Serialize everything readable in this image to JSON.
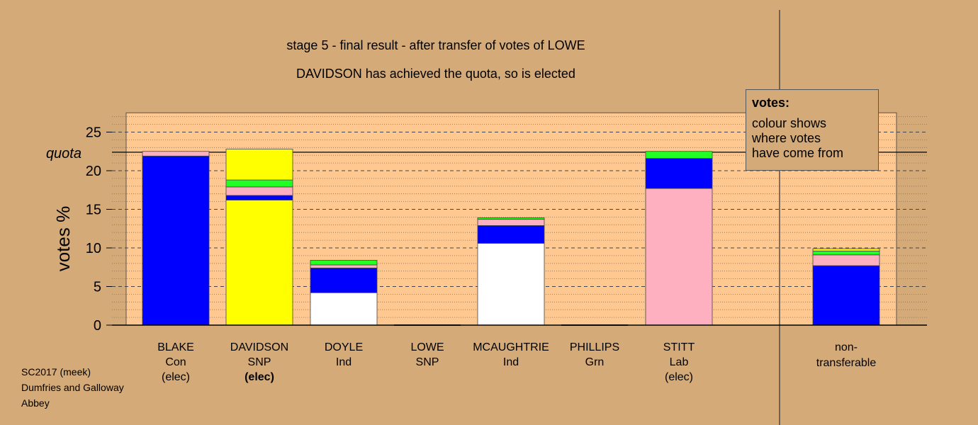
{
  "chart_data": {
    "type": "bar",
    "stacked": true,
    "title": "stage 5 - final result - after transfer of votes of LOWE",
    "subtitle": "DAVIDSON has achieved the quota, so is elected",
    "ylabel": "votes %",
    "xlabel": "",
    "ylim": [
      0,
      27.5
    ],
    "yticks": [
      0,
      5,
      10,
      15,
      20,
      25
    ],
    "quota": 22.4,
    "quota_label": "quota",
    "grid": true,
    "candidates": [
      {
        "name": "BLAKE",
        "party": "Con",
        "status": "(elec)",
        "status_bold": false,
        "segments": [
          {
            "color": "#0000ff",
            "value": 21.9
          },
          {
            "color": "#ffb0c0",
            "value": 0.6
          }
        ]
      },
      {
        "name": "DAVIDSON",
        "party": "SNP",
        "status": "(elec)",
        "status_bold": true,
        "segments": [
          {
            "color": "#ffff00",
            "value": 16.2
          },
          {
            "color": "#0000ff",
            "value": 0.6
          },
          {
            "color": "#ffb0c0",
            "value": 1.1
          },
          {
            "color": "#22ff22",
            "value": 0.9
          },
          {
            "color": "#ffff00",
            "value": 4.0
          }
        ]
      },
      {
        "name": "DOYLE",
        "party": "Ind",
        "status": "",
        "status_bold": false,
        "segments": [
          {
            "color": "#ffffff",
            "value": 4.2
          },
          {
            "color": "#0000ff",
            "value": 3.2
          },
          {
            "color": "#ffb0c0",
            "value": 0.4
          },
          {
            "color": "#22ff22",
            "value": 0.6
          }
        ]
      },
      {
        "name": "LOWE",
        "party": "SNP",
        "status": "",
        "status_bold": false,
        "segments": []
      },
      {
        "name": "MCAUGHTRIE",
        "party": "Ind",
        "status": "",
        "status_bold": false,
        "segments": [
          {
            "color": "#ffffff",
            "value": 10.6
          },
          {
            "color": "#0000ff",
            "value": 2.3
          },
          {
            "color": "#ffb0c0",
            "value": 0.8
          },
          {
            "color": "#22ff22",
            "value": 0.2
          }
        ]
      },
      {
        "name": "PHILLIPS",
        "party": "Grn",
        "status": "",
        "status_bold": false,
        "segments": []
      },
      {
        "name": "STITT",
        "party": "Lab",
        "status": "(elec)",
        "status_bold": false,
        "segments": [
          {
            "color": "#ffb0c0",
            "value": 17.7
          },
          {
            "color": "#0000ff",
            "value": 3.9
          },
          {
            "color": "#22ff22",
            "value": 0.9
          }
        ]
      }
    ],
    "nontransferable": {
      "label_line1": "non-",
      "label_line2": "transferable",
      "segments": [
        {
          "color": "#0000ff",
          "value": 7.7
        },
        {
          "color": "#ffb0c0",
          "value": 1.4
        },
        {
          "color": "#22ff22",
          "value": 0.5
        },
        {
          "color": "#ffff00",
          "value": 0.3
        }
      ]
    },
    "colors": {
      "background": "#d4aa78",
      "plot_background": "#ffc890"
    }
  },
  "legend": {
    "title": "votes:",
    "lines": [
      "colour shows",
      "where votes",
      "have come from"
    ]
  },
  "credits": [
    "SC2017 (meek)",
    "Dumfries and Galloway",
    "Abbey"
  ]
}
